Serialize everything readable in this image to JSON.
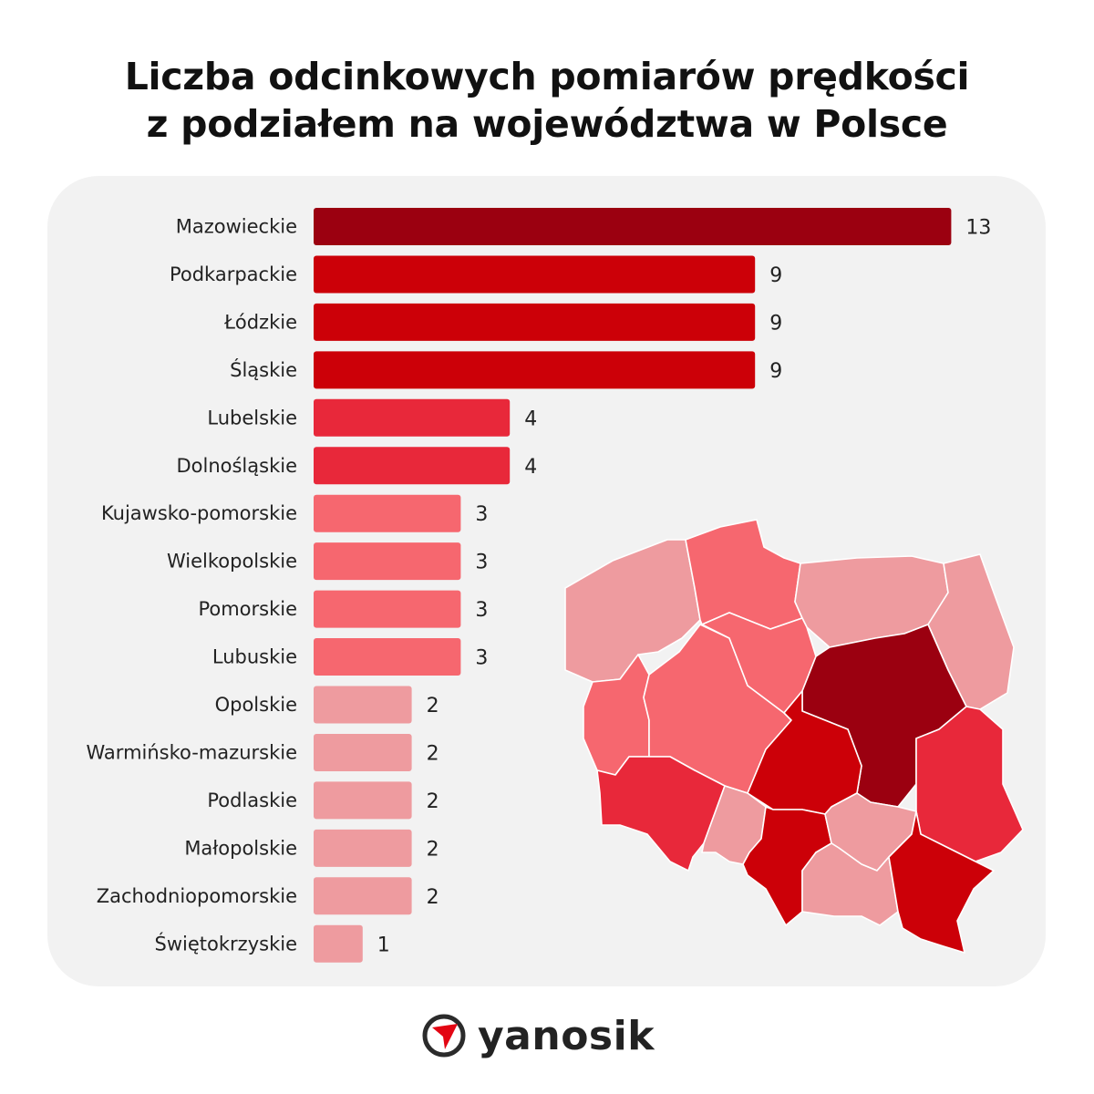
{
  "title_line1": "Liczba odcinkowych pomiarów prędkości",
  "title_line2": "z podziałem na województwa w Polsce",
  "brand": "yanosik",
  "colors": {
    "background": "#ffffff",
    "card": "#f2f2f2",
    "level_13": "#9b0010",
    "level_9": "#cc0008",
    "level_4": "#e8283a",
    "level_3": "#f6676f",
    "level_2": "#ee9b9f",
    "level_1": "#ee9b9f",
    "text": "#222222",
    "logo_red": "#e30613"
  },
  "chart_data": {
    "type": "bar",
    "orientation": "horizontal",
    "title": "Liczba odcinkowych pomiarów prędkości z podziałem na województwa w Polsce",
    "categories": [
      "Mazowieckie",
      "Podkarpackie",
      "Łódzkie",
      "Śląskie",
      "Lubelskie",
      "Dolnośląskie",
      "Kujawsko-pomorskie",
      "Wielkopolskie",
      "Pomorskie",
      "Lubuskie",
      "Opolskie",
      "Warmińsko-mazurskie",
      "Podlaskie",
      "Małopolskie",
      "Zachodniopomorskie",
      "Świętokrzyskie"
    ],
    "values": [
      13,
      9,
      9,
      9,
      4,
      4,
      3,
      3,
      3,
      3,
      2,
      2,
      2,
      2,
      2,
      1
    ],
    "xlim": [
      0,
      13
    ],
    "data_labels": true,
    "grid": false,
    "legend": "none"
  },
  "map": {
    "regions": [
      {
        "name": "Zachodniopomorskie",
        "value": 2
      },
      {
        "name": "Pomorskie",
        "value": 3
      },
      {
        "name": "Warmińsko-mazurskie",
        "value": 2
      },
      {
        "name": "Podlaskie",
        "value": 2
      },
      {
        "name": "Lubuskie",
        "value": 3
      },
      {
        "name": "Wielkopolskie",
        "value": 3
      },
      {
        "name": "Kujawsko-pomorskie",
        "value": 3
      },
      {
        "name": "Mazowieckie",
        "value": 13
      },
      {
        "name": "Łódzkie",
        "value": 9
      },
      {
        "name": "Lubelskie",
        "value": 4
      },
      {
        "name": "Dolnośląskie",
        "value": 4
      },
      {
        "name": "Opolskie",
        "value": 2
      },
      {
        "name": "Śląskie",
        "value": 9
      },
      {
        "name": "Świętokrzyskie",
        "value": 1
      },
      {
        "name": "Małopolskie",
        "value": 2
      },
      {
        "name": "Podkarpackie",
        "value": 9
      }
    ]
  }
}
